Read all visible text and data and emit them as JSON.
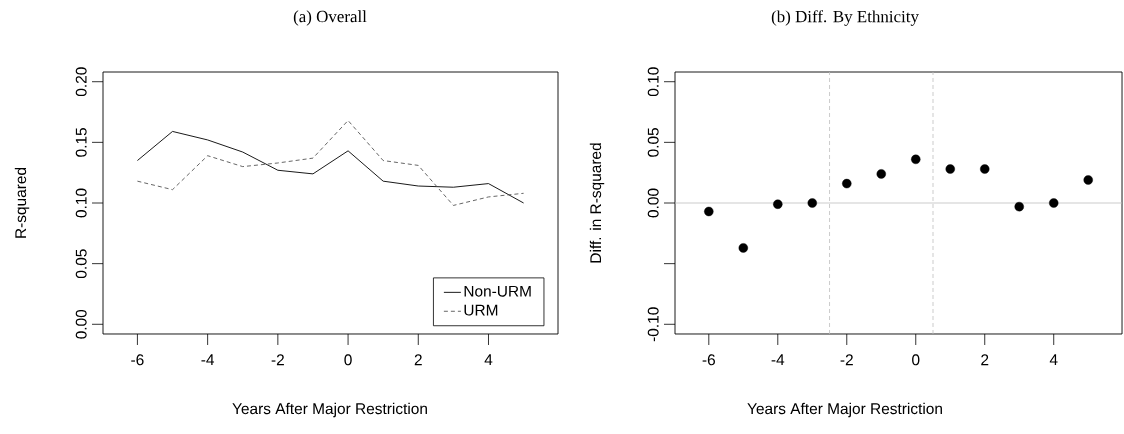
{
  "chart_data": [
    {
      "type": "line",
      "title": "(a) Overall",
      "xlabel": "Years After Major Restriction",
      "ylabel": "R-squared",
      "x": [
        -6,
        -5,
        -4,
        -3,
        -2,
        -1,
        0,
        1,
        2,
        3,
        4,
        5
      ],
      "series": [
        {
          "name": "Non-URM",
          "color": "#000000",
          "line_style": "solid",
          "values": [
            0.135,
            0.159,
            0.152,
            0.142,
            0.127,
            0.124,
            0.143,
            0.118,
            0.114,
            0.113,
            0.116,
            0.1
          ]
        },
        {
          "name": "URM",
          "color": "#555555",
          "line_style": "dashed",
          "values": [
            0.118,
            0.111,
            0.139,
            0.13,
            0.133,
            0.137,
            0.168,
            0.135,
            0.131,
            0.098,
            0.105,
            0.108
          ]
        }
      ],
      "xlim": [
        -6.98,
        5.98
      ],
      "ylim": [
        -0.008,
        0.208
      ],
      "xticks": [
        -6,
        -4,
        -2,
        0,
        2,
        4
      ],
      "yticks": [
        {
          "value": 0,
          "label": "0.00"
        },
        {
          "value": 0.05,
          "label": "0.05"
        },
        {
          "value": 0.1,
          "label": "0.10"
        },
        {
          "value": 0.15,
          "label": "0.15"
        },
        {
          "value": 0.2,
          "label": "0.20"
        }
      ],
      "legend": "bottom right",
      "marker": "none"
    },
    {
      "type": "scatter",
      "title": "(b) Diff. By Ethnicity",
      "xlabel": "Years After Major Restriction",
      "ylabel": "Diff. in R-squared",
      "x": [
        -6,
        -5,
        -4,
        -3,
        -2,
        -1,
        0,
        1,
        2,
        3,
        4,
        5
      ],
      "series": [
        {
          "color": "#000000",
          "values": [
            -0.007,
            -0.037,
            -0.001,
            0.0,
            0.016,
            0.024,
            0.036,
            0.028,
            0.028,
            -0.003,
            0.0,
            0.019
          ]
        }
      ],
      "xlim": [
        -6.98,
        5.98
      ],
      "ylim": [
        -0.108,
        0.108
      ],
      "xticks": [
        -6,
        -4,
        -2,
        0,
        2,
        4
      ],
      "yticks": [
        {
          "value": -0.1,
          "label": "-0.10"
        },
        {
          "value": -0.05,
          "label": null
        },
        {
          "value": 0,
          "label": "0.00"
        },
        {
          "value": 0.05,
          "label": "0.05"
        },
        {
          "value": 0.1,
          "label": "0.10"
        }
      ],
      "ref_lines": [
        {
          "axis": "x",
          "value": -2.5,
          "color": "#bebebe",
          "line_style": "dashed"
        },
        {
          "axis": "x",
          "value": 0.5,
          "color": "#bebebe",
          "line_style": "dashed"
        },
        {
          "axis": "y",
          "value": 0,
          "color": "#bebebe",
          "line_style": "solid"
        }
      ],
      "marker": "circle"
    }
  ]
}
